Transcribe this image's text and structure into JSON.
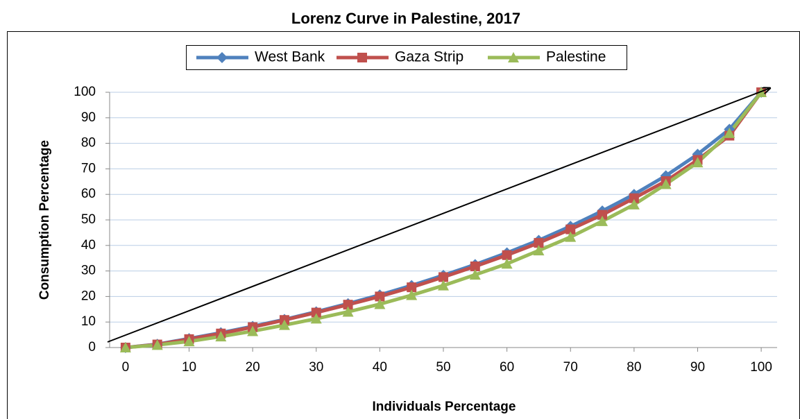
{
  "chart_data": {
    "type": "line",
    "title": "Lorenz Curve in Palestine, 2017",
    "x_label": "Individuals Percentage",
    "y_label": "Consumption Percentage",
    "x": [
      0,
      5,
      10,
      15,
      20,
      25,
      30,
      35,
      40,
      45,
      50,
      55,
      60,
      65,
      70,
      75,
      80,
      85,
      90,
      95,
      100
    ],
    "series": [
      {
        "name": "West Bank",
        "color": "#4f81bd",
        "marker": "diamond",
        "values": [
          0,
          1.3,
          3.5,
          5.8,
          8.3,
          11,
          14,
          17.2,
          20.6,
          24.3,
          28.3,
          32.5,
          37.1,
          42,
          47.5,
          53.5,
          60,
          67.3,
          75.7,
          85.5,
          100
        ]
      },
      {
        "name": "Gaza Strip",
        "color": "#c0504d",
        "marker": "square",
        "values": [
          0,
          1.2,
          3.3,
          5.5,
          8,
          10.8,
          13.7,
          16.8,
          20,
          23.6,
          27.6,
          31.8,
          36.2,
          41,
          46.3,
          52,
          58.5,
          65.2,
          73.5,
          83,
          100
        ]
      },
      {
        "name": "Palestine",
        "color": "#9bbb59",
        "marker": "triangle",
        "values": [
          0,
          1,
          2.4,
          4.3,
          6.4,
          8.8,
          11.3,
          14,
          17,
          20.5,
          24.3,
          28.5,
          32.8,
          38,
          43.3,
          49.5,
          56,
          64,
          72.5,
          84,
          100
        ]
      }
    ],
    "xlim": [
      -2.5,
      102.5
    ],
    "xticks": [
      0,
      10,
      20,
      30,
      40,
      50,
      60,
      70,
      80,
      90,
      100
    ],
    "ylim": [
      0,
      100
    ],
    "yticks": [
      0,
      10,
      20,
      30,
      40,
      50,
      60,
      70,
      80,
      90,
      100
    ],
    "grid": true,
    "legend": "top"
  }
}
